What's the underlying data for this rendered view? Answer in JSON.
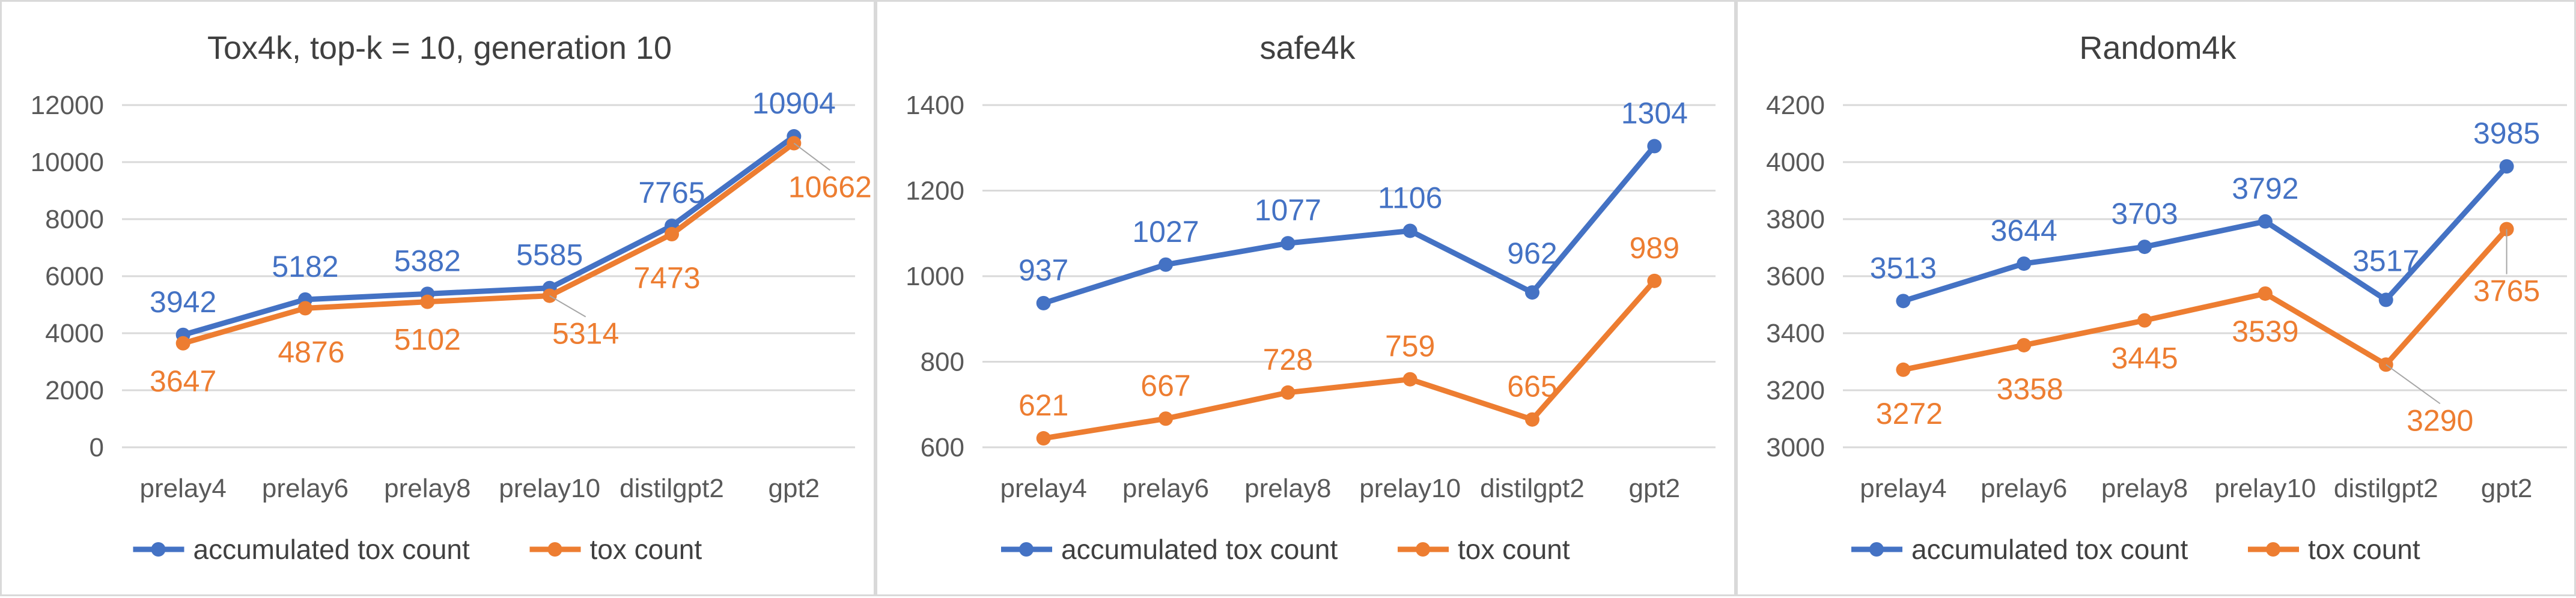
{
  "colors": {
    "accumulated": "#4472C4",
    "tox": "#ED7D31",
    "grid": "#d9d9d9",
    "axis_text": "#595959",
    "title_text": "#404040",
    "leader": "#a6a6a6"
  },
  "chart_data": [
    {
      "type": "line",
      "title": "Tox4k, top-k = 10, generation 10",
      "xlabel": "",
      "ylabel": "",
      "categories": [
        "prelay4",
        "prelay6",
        "prelay8",
        "prelay10",
        "distilgpt2",
        "gpt2"
      ],
      "ylim": [
        0,
        12000
      ],
      "yticks": [
        0,
        2000,
        4000,
        6000,
        8000,
        10000,
        12000
      ],
      "grid": true,
      "legend": "bottom",
      "series": [
        {
          "name": "accumulated tox count",
          "values": [
            3942,
            5182,
            5382,
            5585,
            7765,
            10904
          ],
          "color_key": "accumulated",
          "label_pos": "above"
        },
        {
          "name": "tox count",
          "values": [
            3647,
            4876,
            5102,
            5314,
            7473,
            10662
          ],
          "color_key": "tox",
          "label_pos": "below"
        }
      ]
    },
    {
      "type": "line",
      "title": "safe4k",
      "xlabel": "",
      "ylabel": "",
      "categories": [
        "prelay4",
        "prelay6",
        "prelay8",
        "prelay10",
        "distilgpt2",
        "gpt2"
      ],
      "ylim": [
        600,
        1400
      ],
      "yticks": [
        600,
        800,
        1000,
        1200,
        1400
      ],
      "grid": true,
      "legend": "bottom",
      "series": [
        {
          "name": "accumulated tox count",
          "values": [
            937,
            1027,
            1077,
            1106,
            962,
            1304
          ],
          "color_key": "accumulated",
          "label_pos": "above"
        },
        {
          "name": "tox count",
          "values": [
            621,
            667,
            728,
            759,
            665,
            989
          ],
          "color_key": "tox",
          "label_pos": "above"
        }
      ]
    },
    {
      "type": "line",
      "title": "Random4k",
      "xlabel": "",
      "ylabel": "",
      "categories": [
        "prelay4",
        "prelay6",
        "prelay8",
        "prelay10",
        "distilgpt2",
        "gpt2"
      ],
      "ylim": [
        3000,
        4200
      ],
      "yticks": [
        3000,
        3200,
        3400,
        3600,
        3800,
        4000,
        4200
      ],
      "grid": true,
      "legend": "bottom",
      "series": [
        {
          "name": "accumulated tox count",
          "values": [
            3513,
            3644,
            3703,
            3792,
            3517,
            3985
          ],
          "color_key": "accumulated",
          "label_pos": "above"
        },
        {
          "name": "tox count",
          "values": [
            3272,
            3358,
            3445,
            3539,
            3290,
            3765
          ],
          "color_key": "tox",
          "label_pos": "below"
        }
      ]
    }
  ]
}
